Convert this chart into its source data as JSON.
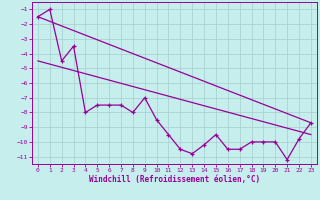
{
  "xlabel": "Windchill (Refroidissement éolien,°C)",
  "background_color": "#c5eeed",
  "grid_color": "#a8cece",
  "line_color": "#990099",
  "x_ticks": [
    0,
    1,
    2,
    3,
    4,
    5,
    6,
    7,
    8,
    9,
    10,
    11,
    12,
    13,
    14,
    15,
    16,
    17,
    18,
    19,
    20,
    21,
    22,
    23
  ],
  "y_ticks": [
    -11,
    -10,
    -9,
    -8,
    -7,
    -6,
    -5,
    -4,
    -3,
    -2,
    -1
  ],
  "ylim": [
    -11.5,
    -0.5
  ],
  "xlim": [
    -0.5,
    23.5
  ],
  "series1_x": [
    0,
    1,
    2,
    3,
    4,
    5,
    6,
    7,
    8,
    9,
    10,
    11,
    12,
    13,
    14,
    15,
    16,
    17,
    18,
    19,
    20,
    21,
    22,
    23
  ],
  "series1_y": [
    -1.5,
    -1.0,
    -4.5,
    -3.5,
    -8.0,
    -7.5,
    -7.5,
    -7.5,
    -8.0,
    -7.0,
    -8.5,
    -9.5,
    -10.5,
    -10.8,
    -10.2,
    -9.5,
    -10.5,
    -10.5,
    -10.0,
    -10.0,
    -10.0,
    -11.2,
    -9.8,
    -8.7
  ],
  "line1_x": [
    0,
    23
  ],
  "line1_y": [
    -1.5,
    -8.7
  ],
  "line2_x": [
    0,
    23
  ],
  "line2_y": [
    -4.5,
    -9.5
  ]
}
